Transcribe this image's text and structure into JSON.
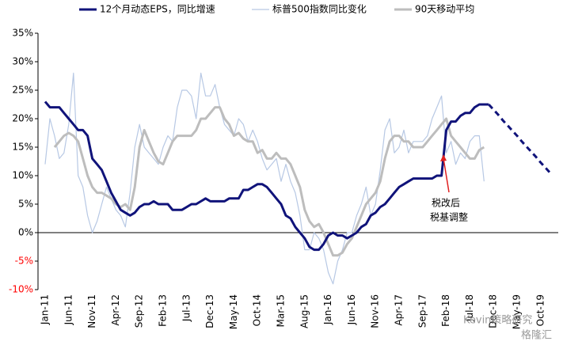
{
  "chart_data": {
    "type": "line",
    "categories": [
      "Jan-11",
      null,
      null,
      null,
      null,
      "Jun-11",
      null,
      null,
      null,
      null,
      "Nov-11",
      null,
      null,
      null,
      null,
      "Apr-12",
      null,
      null,
      null,
      null,
      "Sep-12",
      null,
      null,
      null,
      null,
      "Feb-13",
      null,
      null,
      null,
      null,
      "Jul-13",
      null,
      null,
      null,
      null,
      "Dec-13",
      null,
      null,
      null,
      null,
      "May-14",
      null,
      null,
      null,
      null,
      "Oct-14",
      null,
      null,
      null,
      null,
      "Mar-15",
      null,
      null,
      null,
      null,
      "Aug-15",
      null,
      null,
      null,
      null,
      "Jan-16",
      null,
      null,
      null,
      null,
      "Jun-16",
      null,
      null,
      null,
      null,
      "Nov-16",
      null,
      null,
      null,
      null,
      "Apr-17",
      null,
      null,
      null,
      null,
      "Sep-17",
      null,
      null,
      null,
      null,
      "Feb-18",
      null,
      null,
      null,
      null,
      "Jul-18",
      null,
      null,
      null,
      null,
      "Dec-18",
      null,
      null,
      null,
      null,
      "May-19",
      null,
      null,
      null,
      null,
      "Oct-19",
      null,
      null
    ],
    "series": [
      {
        "name": "12个月动态EPS，同比增速",
        "color": "#10137a",
        "width": 3,
        "values": [
          23,
          22,
          22,
          22,
          21,
          20,
          19,
          18,
          18,
          17,
          13,
          12,
          11,
          9,
          7,
          5.5,
          4,
          3.5,
          3,
          3.5,
          4.5,
          5,
          5,
          5.5,
          5,
          5,
          5,
          4,
          4,
          4,
          4.5,
          5,
          5,
          5.5,
          6,
          5.5,
          5.5,
          5.5,
          5.5,
          6,
          6,
          6,
          7.5,
          7.5,
          8,
          8.5,
          8.5,
          8,
          7,
          6,
          5,
          3,
          2.5,
          1,
          0,
          -1,
          -2.5,
          -3,
          -3,
          -2,
          -0.5,
          0,
          -0.5,
          -0.5,
          -1,
          -0.5,
          0,
          1,
          1.5,
          3,
          3.5,
          4.5,
          5,
          6,
          7,
          8,
          8.5,
          9,
          9.5,
          9.5,
          9.5,
          9.5,
          9.5,
          10,
          10,
          18,
          19.5,
          19.5,
          20.5,
          21,
          21,
          22,
          22.5,
          22.5,
          22.5,
          null,
          null,
          null,
          null,
          null,
          null,
          null,
          null,
          null,
          null,
          null,
          null,
          null
        ],
        "projection": [
          null,
          null,
          null,
          null,
          null,
          null,
          null,
          null,
          null,
          null,
          null,
          null,
          null,
          null,
          null,
          null,
          null,
          null,
          null,
          null,
          null,
          null,
          null,
          null,
          null,
          null,
          null,
          null,
          null,
          null,
          null,
          null,
          null,
          null,
          null,
          null,
          null,
          null,
          null,
          null,
          null,
          null,
          null,
          null,
          null,
          null,
          null,
          null,
          null,
          null,
          null,
          null,
          null,
          null,
          null,
          null,
          null,
          null,
          null,
          null,
          null,
          null,
          null,
          null,
          null,
          null,
          null,
          null,
          null,
          null,
          null,
          null,
          null,
          null,
          null,
          null,
          null,
          null,
          null,
          null,
          null,
          null,
          null,
          null,
          null,
          null,
          null,
          null,
          null,
          null,
          null,
          null,
          null,
          null,
          22.5,
          21.6,
          20.7,
          19.7,
          18.8,
          17.9,
          17,
          16,
          15.1,
          14.2,
          13.3,
          12.3,
          11.4,
          10.5
        ]
      },
      {
        "name": "标普500指数同比变化",
        "color": "#b7c8e4",
        "width": 1.2,
        "values": [
          12,
          20,
          17,
          13,
          14,
          19,
          28,
          10,
          8,
          3,
          0,
          2,
          5,
          8,
          6,
          4,
          3,
          1,
          7,
          15,
          19,
          15,
          14,
          13,
          12,
          15,
          17,
          16,
          22,
          25,
          25,
          24,
          20,
          28,
          24,
          24,
          26,
          22,
          19,
          18,
          17,
          20,
          19,
          16,
          18,
          16,
          13,
          11,
          12,
          13,
          9,
          12,
          9,
          7,
          3,
          -3,
          -3,
          0,
          -1,
          -3,
          -7,
          -9,
          -5,
          -3,
          0,
          0,
          3,
          5,
          8,
          3,
          5,
          11,
          18,
          20,
          14,
          15,
          18,
          14,
          16,
          16,
          16,
          17,
          20,
          22,
          24,
          14,
          16,
          12,
          14,
          13,
          16,
          17,
          17,
          9,
          null,
          null,
          null,
          null,
          null,
          null,
          null,
          null,
          null,
          null,
          null,
          null,
          null,
          null
        ]
      },
      {
        "name": "90天移动平均",
        "color": "#bdbdbd",
        "width": 3,
        "values": [
          null,
          null,
          15,
          16,
          17,
          17.5,
          17,
          16,
          13,
          10,
          8,
          7,
          7,
          6.5,
          6,
          5,
          4.5,
          5,
          4,
          8,
          15,
          18,
          16,
          14,
          12.5,
          12,
          14,
          16,
          17,
          17,
          17,
          17,
          18,
          20,
          20,
          21,
          22,
          22,
          20,
          19,
          17,
          17.5,
          16.5,
          16,
          16,
          14,
          14.5,
          13,
          13,
          14,
          13,
          13,
          12,
          10,
          8,
          4,
          2,
          1,
          1.5,
          0,
          -2,
          -4,
          -4,
          -3.5,
          -2,
          -1,
          1,
          3,
          5,
          6,
          7,
          9,
          13,
          16,
          17,
          17,
          16,
          16,
          15,
          15,
          15,
          16,
          17,
          18,
          19,
          20,
          17,
          16,
          15,
          14,
          13,
          13,
          14.5,
          15,
          null,
          null,
          null,
          null,
          null,
          null,
          null,
          null,
          null,
          null,
          null,
          null,
          null,
          null
        ]
      }
    ],
    "ylim": [
      -10,
      35
    ],
    "yticks": [
      {
        "value": -10,
        "label": "-10%"
      },
      {
        "value": -5,
        "label": "-5%"
      },
      {
        "value": 0,
        "label": "0%"
      },
      {
        "value": 5,
        "label": "5%"
      },
      {
        "value": 10,
        "label": "10%"
      },
      {
        "value": 15,
        "label": "15%"
      },
      {
        "value": 20,
        "label": "20%"
      },
      {
        "value": 25,
        "label": "25%"
      },
      {
        "value": 30,
        "label": "30%"
      },
      {
        "value": 35,
        "label": "35%"
      }
    ],
    "negative_tick_color": "#ff0000",
    "grid": false,
    "legend": "top",
    "annotations": [
      "税改后",
      "税基调整"
    ],
    "annotation_color": "#e02020",
    "watermarks": [
      "Kevin策略研究",
      "格隆汇"
    ]
  }
}
